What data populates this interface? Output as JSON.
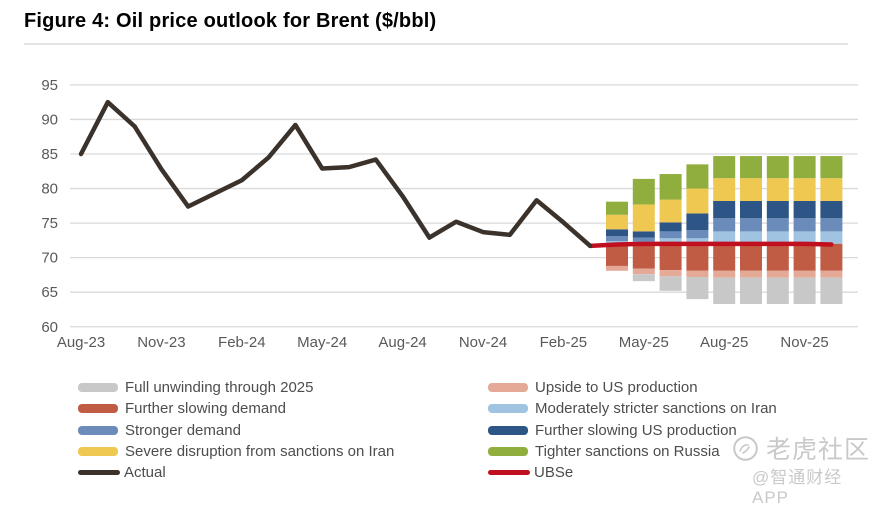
{
  "title": "Figure 4: Oil price outlook for Brent ($/bbl)",
  "watermark": {
    "community": "老虎社区",
    "handle": "@智通财经APP"
  },
  "colors": {
    "grid": "#d9d9d9",
    "axis_text": "#595959",
    "legend_text": "#4d4d4d",
    "actual_line": "#3b322b",
    "ubse_line": "#c01020",
    "full_unwinding_gray": "#c8c8c8",
    "further_slowing_demand_terracotta": "#c05c43",
    "stronger_demand_steel_blue": "#6b8cba",
    "severe_disruption_iran_yellow": "#eec850",
    "upside_us_production_salmon": "#e5a998",
    "moderately_stricter_iran_light_blue": "#9fc3e1",
    "further_slowing_us_production_navy": "#2d5586",
    "tighter_sanctions_russia_green": "#8fae3e",
    "watermark": "#c9c9c9"
  },
  "chart_data": {
    "type": "combo: line + stacked scenario bars",
    "title": "Figure 4: Oil price outlook for Brent ($/bbl)",
    "ylabel": "$/bbl",
    "ylim": [
      60,
      95
    ],
    "y_ticks": [
      60,
      65,
      70,
      75,
      80,
      85,
      90,
      95
    ],
    "grid": "horizontal only",
    "x_months": [
      "Aug-23",
      "Sep-23",
      "Oct-23",
      "Nov-23",
      "Dec-23",
      "Jan-24",
      "Feb-24",
      "Mar-24",
      "Apr-24",
      "May-24",
      "Jun-24",
      "Jul-24",
      "Aug-24",
      "Sep-24",
      "Oct-24",
      "Nov-24",
      "Dec-24",
      "Jan-25",
      "Feb-25",
      "Mar-25",
      "Apr-25",
      "May-25",
      "Jun-25",
      "Jul-25",
      "Aug-25",
      "Sep-25",
      "Oct-25",
      "Nov-25",
      "Dec-25"
    ],
    "x_tick_labels": [
      "Aug-23",
      "Nov-23",
      "Feb-24",
      "May-24",
      "Aug-24",
      "Nov-24",
      "Feb-25",
      "May-25",
      "Aug-25",
      "Nov-25"
    ],
    "series": {
      "actual": {
        "name": "Actual",
        "color": "#3b322b",
        "start_index": 0,
        "values": [
          85.0,
          92.5,
          89.0,
          82.8,
          77.4,
          79.3,
          81.2,
          84.5,
          89.2,
          82.9,
          83.1,
          84.2,
          78.9,
          72.9,
          75.2,
          73.7,
          73.3,
          78.3,
          75.1,
          71.7
        ]
      },
      "ubse": {
        "name": "UBSe",
        "color": "#c01020",
        "start_index": 19,
        "values": [
          71.7,
          71.9,
          72.0,
          72.0,
          72.0,
          72.0,
          72.0,
          72.0,
          72.0,
          71.9
        ]
      }
    },
    "bars": {
      "note": "scenario ranges stacked above/below the UBSe base forecast, $/bbl",
      "start_month_index": 20,
      "months": [
        "Apr-25",
        "May-25",
        "Jun-25",
        "Jul-25",
        "Aug-25",
        "Sep-25",
        "Oct-25",
        "Nov-25",
        "Dec-25"
      ],
      "base_ubse": [
        71.9,
        72.0,
        72.0,
        72.0,
        72.0,
        72.0,
        72.0,
        72.0,
        72.0
      ],
      "segments_up": [
        {
          "name": "Moderately stricter sanctions on Iran",
          "color": "#9fc3e1",
          "tops": [
            72.4,
            72.3,
            72.8,
            72.8,
            73.8,
            73.8,
            73.8,
            73.8,
            73.8
          ]
        },
        {
          "name": "Stronger demand",
          "color": "#6b8cba",
          "tops": [
            73.1,
            72.9,
            73.8,
            74.0,
            75.7,
            75.7,
            75.7,
            75.7,
            75.7
          ]
        },
        {
          "name": "Further slowing US production",
          "color": "#2d5586",
          "tops": [
            74.1,
            73.8,
            75.1,
            76.4,
            78.2,
            78.2,
            78.2,
            78.2,
            78.2
          ]
        },
        {
          "name": "Severe disruption from sanctions on Iran",
          "color": "#eec850",
          "tops": [
            76.2,
            77.7,
            78.4,
            80.0,
            81.5,
            81.5,
            81.5,
            81.5,
            81.5
          ]
        },
        {
          "name": "Tighter sanctions on Russia",
          "color": "#8fae3e",
          "tops": [
            78.1,
            81.4,
            82.1,
            83.5,
            84.7,
            84.7,
            84.7,
            84.7,
            84.7
          ]
        }
      ],
      "segments_down": [
        {
          "name": "Further slowing demand",
          "color": "#c05c43",
          "bottoms": [
            68.8,
            68.4,
            68.2,
            68.1,
            68.1,
            68.1,
            68.1,
            68.1,
            68.1
          ]
        },
        {
          "name": "Upside to US production",
          "color": "#e5a998",
          "bottoms": [
            68.1,
            67.6,
            67.3,
            67.2,
            67.1,
            67.1,
            67.1,
            67.1,
            67.1
          ]
        },
        {
          "name": "Full unwinding through 2025",
          "color": "#c8c8c8",
          "bottoms": [
            68.1,
            66.6,
            65.2,
            64.0,
            63.3,
            63.3,
            63.3,
            63.3,
            63.3
          ]
        }
      ]
    },
    "legend": {
      "position": "bottom, two columns",
      "left": [
        {
          "label": "Full unwinding through 2025",
          "color": "#c8c8c8",
          "style": "box"
        },
        {
          "label": "Further slowing demand",
          "color": "#c05c43",
          "style": "box"
        },
        {
          "label": "Stronger demand",
          "color": "#6b8cba",
          "style": "box"
        },
        {
          "label": "Severe disruption from sanctions on Iran",
          "color": "#eec850",
          "style": "box"
        },
        {
          "label": "Actual",
          "color": "#3b322b",
          "style": "line"
        }
      ],
      "right": [
        {
          "label": "Upside to US production",
          "color": "#e5a998",
          "style": "box"
        },
        {
          "label": "Moderately stricter sanctions on Iran",
          "color": "#9fc3e1",
          "style": "box"
        },
        {
          "label": "Further slowing US production",
          "color": "#2d5586",
          "style": "box"
        },
        {
          "label": "Tighter sanctions on Russia",
          "color": "#8fae3e",
          "style": "box"
        },
        {
          "label": "UBSe",
          "color": "#c01020",
          "style": "line"
        }
      ]
    }
  }
}
